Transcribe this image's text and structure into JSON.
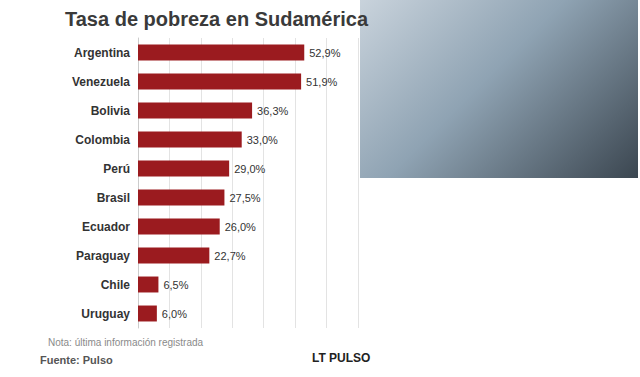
{
  "chart_data": {
    "type": "bar",
    "title": "Tasa de pobreza en Sudamérica",
    "orientation": "horizontal",
    "categories": [
      "Argentina",
      "Venezuela",
      "Bolivia",
      "Colombia",
      "Perú",
      "Brasil",
      "Ecuador",
      "Paraguay",
      "Chile",
      "Uruguay"
    ],
    "values": [
      52.9,
      51.9,
      36.3,
      33.0,
      29.0,
      27.5,
      26.0,
      22.7,
      6.5,
      6.0
    ],
    "value_labels": [
      "52,9%",
      "51,9%",
      "36,3%",
      "33,0%",
      "29,0%",
      "27,5%",
      "26,0%",
      "22,7%",
      "6,5%",
      "6,0%"
    ],
    "color": "#9b1b1f",
    "xlim": [
      0,
      70
    ],
    "xticks": [
      0,
      10,
      20,
      30,
      40,
      50,
      60,
      70
    ],
    "grid": true,
    "data_labels": true,
    "tick_labels": "y",
    "annotations": [
      "Nota: última información registrada",
      "Fuente: Pulso",
      "LT PULSO"
    ]
  }
}
